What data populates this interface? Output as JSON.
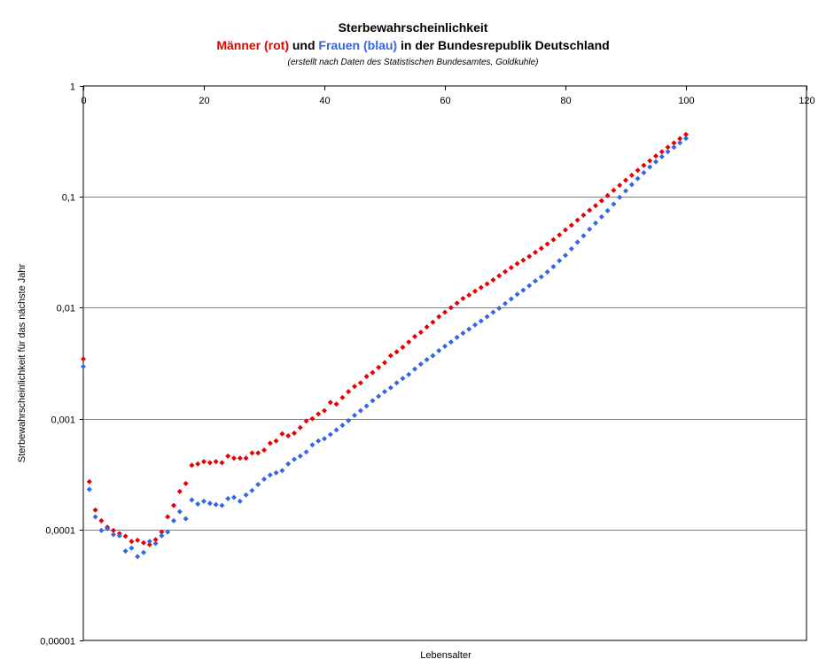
{
  "chart_data": {
    "type": "scatter",
    "title": "Sterbewahrscheinlichkeit",
    "subtitle_parts": [
      {
        "text": "Männer (rot)",
        "color": "#e60000"
      },
      {
        "text": " und ",
        "color": "#000000"
      },
      {
        "text": "Frauen (blau)",
        "color": "#3366e6"
      },
      {
        "text": " in der Bundesrepublik Deutschland",
        "color": "#000000"
      }
    ],
    "note": "(erstellt nach Daten des Statistischen Bundesamtes, Goldkuhle)",
    "xlabel": "Lebensalter",
    "ylabel": "Sterbewahrscheinlichkeit für das nächste Jahr",
    "xlim": [
      0,
      120
    ],
    "ylim": [
      1e-05,
      1
    ],
    "y_scale": "log",
    "x_ticks": [
      "0",
      "20",
      "40",
      "60",
      "80",
      "100",
      "120"
    ],
    "y_ticks": [
      "1",
      "0,1",
      "0,01",
      "0,001",
      "0,0001",
      "0,00001"
    ],
    "x_axis_position": "top",
    "grid": "horizontal",
    "series": [
      {
        "color": "#e60000",
        "points": [
          [
            0,
            0.00345
          ],
          [
            1,
            0.00027
          ],
          [
            2,
            0.00015
          ],
          [
            3,
            0.00012
          ],
          [
            4,
            0.000105
          ],
          [
            5,
            9.8e-05
          ],
          [
            6,
            9.2e-05
          ],
          [
            7,
            8.7e-05
          ],
          [
            8,
            7.8e-05
          ],
          [
            9,
            8e-05
          ],
          [
            10,
            7.6e-05
          ],
          [
            11,
            7.3e-05
          ],
          [
            12,
            8.1e-05
          ],
          [
            13,
            9.5e-05
          ],
          [
            14,
            0.00013
          ],
          [
            15,
            0.000165
          ],
          [
            16,
            0.00022
          ],
          [
            17,
            0.00026
          ],
          [
            18,
            0.00038
          ],
          [
            19,
            0.00039
          ],
          [
            20,
            0.00041
          ],
          [
            21,
            0.0004
          ],
          [
            22,
            0.00041
          ],
          [
            23,
            0.0004
          ],
          [
            24,
            0.00046
          ],
          [
            25,
            0.00044
          ],
          [
            26,
            0.00044
          ],
          [
            27,
            0.00044
          ],
          [
            28,
            0.00049
          ],
          [
            29,
            0.00049
          ],
          [
            30,
            0.00052
          ],
          [
            31,
            0.0006
          ],
          [
            32,
            0.00063
          ],
          [
            33,
            0.00073
          ],
          [
            34,
            0.0007
          ],
          [
            35,
            0.00074
          ],
          [
            36,
            0.00083
          ],
          [
            37,
            0.00095
          ],
          [
            38,
            0.001
          ],
          [
            39,
            0.0011
          ],
          [
            40,
            0.00118
          ],
          [
            41,
            0.0014
          ],
          [
            42,
            0.00135
          ],
          [
            43,
            0.00155
          ],
          [
            44,
            0.00175
          ],
          [
            45,
            0.00195
          ],
          [
            46,
            0.0021
          ],
          [
            47,
            0.0024
          ],
          [
            48,
            0.0026
          ],
          [
            49,
            0.0029
          ],
          [
            50,
            0.0032
          ],
          [
            51,
            0.0037
          ],
          [
            52,
            0.004
          ],
          [
            53,
            0.0044
          ],
          [
            54,
            0.0049
          ],
          [
            55,
            0.0055
          ],
          [
            56,
            0.006
          ],
          [
            57,
            0.0067
          ],
          [
            58,
            0.0074
          ],
          [
            59,
            0.0083
          ],
          [
            60,
            0.0091
          ],
          [
            61,
            0.01
          ],
          [
            62,
            0.011
          ],
          [
            63,
            0.0121
          ],
          [
            64,
            0.013
          ],
          [
            65,
            0.0141
          ],
          [
            66,
            0.0152
          ],
          [
            67,
            0.0164
          ],
          [
            68,
            0.0178
          ],
          [
            69,
            0.0194
          ],
          [
            70,
            0.0211
          ],
          [
            71,
            0.023
          ],
          [
            72,
            0.025
          ],
          [
            73,
            0.0268
          ],
          [
            74,
            0.029
          ],
          [
            75,
            0.0316
          ],
          [
            76,
            0.0343
          ],
          [
            77,
            0.0375
          ],
          [
            78,
            0.041
          ],
          [
            79,
            0.0453
          ],
          [
            80,
            0.0502
          ],
          [
            81,
            0.0555
          ],
          [
            82,
            0.0617
          ],
          [
            83,
            0.0683
          ],
          [
            84,
            0.0757
          ],
          [
            85,
            0.0833
          ],
          [
            86,
            0.0921
          ],
          [
            87,
            0.1027
          ],
          [
            88,
            0.1144
          ],
          [
            89,
            0.1272
          ],
          [
            90,
            0.1412
          ],
          [
            91,
            0.1564
          ],
          [
            92,
            0.1736
          ],
          [
            93,
            0.1922
          ],
          [
            94,
            0.2112
          ],
          [
            95,
            0.2333
          ],
          [
            96,
            0.2546
          ],
          [
            97,
            0.2797
          ],
          [
            98,
            0.3062
          ],
          [
            99,
            0.3348
          ],
          [
            100,
            0.3645
          ]
        ]
      },
      {
        "color": "#3366e6",
        "points": [
          [
            0,
            0.00295
          ],
          [
            1,
            0.00023
          ],
          [
            2,
            0.00013
          ],
          [
            3,
            9.8e-05
          ],
          [
            4,
            0.000102
          ],
          [
            5,
            9e-05
          ],
          [
            6,
            8.8e-05
          ],
          [
            7,
            6.4e-05
          ],
          [
            8,
            6.8e-05
          ],
          [
            9,
            5.7e-05
          ],
          [
            10,
            6.2e-05
          ],
          [
            11,
            7.8e-05
          ],
          [
            12,
            7.5e-05
          ],
          [
            13,
            8.8e-05
          ],
          [
            14,
            9.5e-05
          ],
          [
            15,
            0.00012
          ],
          [
            16,
            0.000145
          ],
          [
            17,
            0.000125
          ],
          [
            18,
            0.000185
          ],
          [
            19,
            0.00017
          ],
          [
            20,
            0.00018
          ],
          [
            21,
            0.000172
          ],
          [
            22,
            0.000168
          ],
          [
            23,
            0.000165
          ],
          [
            24,
            0.00019
          ],
          [
            25,
            0.000195
          ],
          [
            26,
            0.00018
          ],
          [
            27,
            0.000205
          ],
          [
            28,
            0.000225
          ],
          [
            29,
            0.000255
          ],
          [
            30,
            0.000285
          ],
          [
            31,
            0.00031
          ],
          [
            32,
            0.000325
          ],
          [
            33,
            0.00034
          ],
          [
            34,
            0.00039
          ],
          [
            35,
            0.00043
          ],
          [
            36,
            0.00046
          ],
          [
            37,
            0.0005
          ],
          [
            38,
            0.00058
          ],
          [
            39,
            0.00063
          ],
          [
            40,
            0.00066
          ],
          [
            41,
            0.00072
          ],
          [
            42,
            0.00079
          ],
          [
            43,
            0.00087
          ],
          [
            44,
            0.00096
          ],
          [
            45,
            0.00107
          ],
          [
            46,
            0.00118
          ],
          [
            47,
            0.0013
          ],
          [
            48,
            0.00145
          ],
          [
            49,
            0.00159
          ],
          [
            50,
            0.00175
          ],
          [
            51,
            0.0019
          ],
          [
            52,
            0.0021
          ],
          [
            53,
            0.0023
          ],
          [
            54,
            0.0025
          ],
          [
            55,
            0.0028
          ],
          [
            56,
            0.0031
          ],
          [
            57,
            0.0034
          ],
          [
            58,
            0.0037
          ],
          [
            59,
            0.0041
          ],
          [
            60,
            0.0045
          ],
          [
            61,
            0.0049
          ],
          [
            62,
            0.0054
          ],
          [
            63,
            0.0059
          ],
          [
            64,
            0.0064
          ],
          [
            65,
            0.007
          ],
          [
            66,
            0.0076
          ],
          [
            67,
            0.0083
          ],
          [
            68,
            0.0091
          ],
          [
            69,
            0.0099
          ],
          [
            70,
            0.0109
          ],
          [
            71,
            0.012
          ],
          [
            72,
            0.0132
          ],
          [
            73,
            0.0144
          ],
          [
            74,
            0.0158
          ],
          [
            75,
            0.0174
          ],
          [
            76,
            0.019
          ],
          [
            77,
            0.021
          ],
          [
            78,
            0.0235
          ],
          [
            79,
            0.0265
          ],
          [
            80,
            0.0297
          ],
          [
            81,
            0.034
          ],
          [
            82,
            0.039
          ],
          [
            83,
            0.0445
          ],
          [
            84,
            0.051
          ],
          [
            85,
            0.058
          ],
          [
            86,
            0.066
          ],
          [
            87,
            0.075
          ],
          [
            88,
            0.086
          ],
          [
            89,
            0.099
          ],
          [
            90,
            0.113
          ],
          [
            91,
            0.129
          ],
          [
            92,
            0.146
          ],
          [
            93,
            0.165
          ],
          [
            94,
            0.186
          ],
          [
            95,
            0.207
          ],
          [
            96,
            0.23
          ],
          [
            97,
            0.255
          ],
          [
            98,
            0.28
          ],
          [
            99,
            0.307
          ],
          [
            100,
            0.336
          ]
        ]
      }
    ]
  }
}
